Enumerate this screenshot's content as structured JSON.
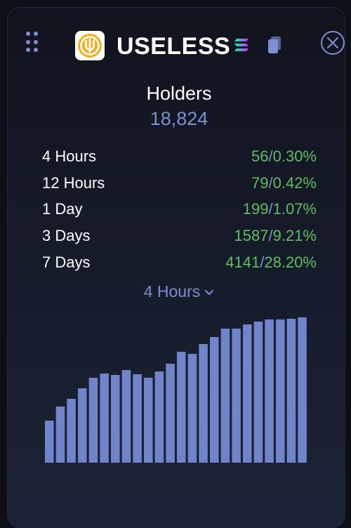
{
  "header": {
    "token_name": "USELESS",
    "icons": {
      "drag": "drag-handle-icon",
      "logo": "token-logo-icon",
      "chain": "solana-icon",
      "copy": "copy-icon",
      "close": "close-icon"
    },
    "colors": {
      "logo_gold": "#f2b01e",
      "accent": "#7d8fd0"
    }
  },
  "holders": {
    "label": "Holders",
    "value": "18,824"
  },
  "stats": [
    {
      "label": "4 Hours",
      "count": "56",
      "separator": "/",
      "percent": "0.30%"
    },
    {
      "label": "12 Hours",
      "count": "79",
      "separator": "/",
      "percent": "0.42%"
    },
    {
      "label": "1 Day",
      "count": "199",
      "separator": "/",
      "percent": "1.07%"
    },
    {
      "label": "3 Days",
      "count": "1587",
      "separator": "/",
      "percent": "9.21%"
    },
    {
      "label": "7 Days",
      "count": "4141",
      "separator": "/",
      "percent": "28.20%"
    }
  ],
  "period_selector": {
    "selected": "4 Hours"
  },
  "chart_data": {
    "type": "bar",
    "values": [
      60,
      80,
      91,
      106,
      121,
      127,
      125,
      132,
      126,
      121,
      130,
      141,
      158,
      155,
      169,
      179,
      191,
      191,
      197,
      201,
      204,
      204,
      205,
      207
    ],
    "ylim": [
      0,
      207
    ],
    "color": "#7085c9",
    "grid": false
  }
}
